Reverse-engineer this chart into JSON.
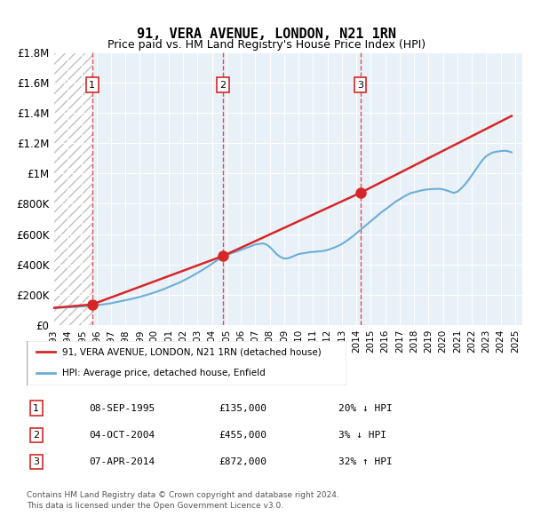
{
  "title": "91, VERA AVENUE, LONDON, N21 1RN",
  "subtitle": "Price paid vs. HM Land Registry's House Price Index (HPI)",
  "legend_line1": "91, VERA AVENUE, LONDON, N21 1RN (detached house)",
  "legend_line2": "HPI: Average price, detached house, Enfield",
  "footer1": "Contains HM Land Registry data © Crown copyright and database right 2024.",
  "footer2": "This data is licensed under the Open Government Licence v3.0.",
  "sales": [
    {
      "num": 1,
      "date": "08-SEP-1995",
      "price": 135000,
      "hpi_diff": "20% ↓ HPI"
    },
    {
      "num": 2,
      "date": "04-OCT-2004",
      "price": 455000,
      "hpi_diff": "3% ↓ HPI"
    },
    {
      "num": 3,
      "date": "07-APR-2014",
      "price": 872000,
      "hpi_diff": "32% ↑ HPI"
    }
  ],
  "sale_years": [
    1995.69,
    2004.75,
    2014.27
  ],
  "sale_prices": [
    135000,
    455000,
    872000
  ],
  "hpi_color": "#6baed6",
  "price_color": "#d62728",
  "background_hatch_color": "#d0d0d0",
  "ylim": [
    0,
    1800000
  ],
  "xlim_start": 1993,
  "xlim_end": 2025.5,
  "yticks": [
    0,
    200000,
    400000,
    600000,
    800000,
    1000000,
    1200000,
    1400000,
    1600000,
    1800000
  ],
  "ytick_labels": [
    "£0",
    "£200K",
    "£400K",
    "£600K",
    "£800K",
    "£1M",
    "£1.2M",
    "£1.4M",
    "£1.6M",
    "£1.8M"
  ],
  "xticks": [
    1993,
    1994,
    1995,
    1996,
    1997,
    1998,
    1999,
    2000,
    2001,
    2002,
    2003,
    2004,
    2005,
    2006,
    2007,
    2008,
    2009,
    2010,
    2011,
    2012,
    2013,
    2014,
    2015,
    2016,
    2017,
    2018,
    2019,
    2020,
    2021,
    2022,
    2023,
    2024,
    2025
  ],
  "hpi_x": [
    1993,
    1993.25,
    1993.5,
    1993.75,
    1994,
    1994.25,
    1994.5,
    1994.75,
    1995,
    1995.25,
    1995.5,
    1995.75,
    1996,
    1996.25,
    1996.5,
    1996.75,
    1997,
    1997.25,
    1997.5,
    1997.75,
    1998,
    1998.25,
    1998.5,
    1998.75,
    1999,
    1999.25,
    1999.5,
    1999.75,
    2000,
    2000.25,
    2000.5,
    2000.75,
    2001,
    2001.25,
    2001.5,
    2001.75,
    2002,
    2002.25,
    2002.5,
    2002.75,
    2003,
    2003.25,
    2003.5,
    2003.75,
    2004,
    2004.25,
    2004.5,
    2004.75,
    2005,
    2005.25,
    2005.5,
    2005.75,
    2006,
    2006.25,
    2006.5,
    2006.75,
    2007,
    2007.25,
    2007.5,
    2007.75,
    2008,
    2008.25,
    2008.5,
    2008.75,
    2009,
    2009.25,
    2009.5,
    2009.75,
    2010,
    2010.25,
    2010.5,
    2010.75,
    2011,
    2011.25,
    2011.5,
    2011.75,
    2012,
    2012.25,
    2012.5,
    2012.75,
    2013,
    2013.25,
    2013.5,
    2013.75,
    2014,
    2014.25,
    2014.5,
    2014.75,
    2015,
    2015.25,
    2015.5,
    2015.75,
    2016,
    2016.25,
    2016.5,
    2016.75,
    2017,
    2017.25,
    2017.5,
    2017.75,
    2018,
    2018.25,
    2018.5,
    2018.75,
    2019,
    2019.25,
    2019.5,
    2019.75,
    2020,
    2020.25,
    2020.5,
    2020.75,
    2021,
    2021.25,
    2021.5,
    2021.75,
    2022,
    2022.25,
    2022.5,
    2022.75,
    2023,
    2023.25,
    2023.5,
    2023.75,
    2024,
    2024.25,
    2024.5,
    2024.75
  ],
  "hpi_y": [
    112000,
    113000,
    114000,
    115000,
    116000,
    117000,
    118000,
    120000,
    122000,
    124000,
    126000,
    128000,
    130000,
    133000,
    136000,
    139000,
    143000,
    148000,
    153000,
    158000,
    163000,
    168000,
    173000,
    179000,
    185000,
    192000,
    199000,
    206000,
    214000,
    222000,
    231000,
    240000,
    250000,
    260000,
    270000,
    280000,
    292000,
    304000,
    317000,
    330000,
    344000,
    358000,
    373000,
    388000,
    404000,
    420000,
    437000,
    454000,
    462000,
    470000,
    478000,
    486000,
    495000,
    504000,
    513000,
    522000,
    531000,
    535000,
    538000,
    532000,
    515000,
    490000,
    465000,
    448000,
    438000,
    440000,
    448000,
    458000,
    468000,
    472000,
    476000,
    480000,
    482000,
    484000,
    486000,
    489000,
    495000,
    503000,
    512000,
    522000,
    535000,
    550000,
    567000,
    585000,
    605000,
    625000,
    645000,
    665000,
    685000,
    705000,
    725000,
    745000,
    762000,
    780000,
    798000,
    816000,
    830000,
    845000,
    858000,
    870000,
    876000,
    882000,
    888000,
    893000,
    895000,
    897000,
    898000,
    899000,
    895000,
    888000,
    880000,
    872000,
    880000,
    900000,
    925000,
    955000,
    988000,
    1022000,
    1058000,
    1090000,
    1115000,
    1130000,
    1140000,
    1145000,
    1148000,
    1150000,
    1148000,
    1140000
  ],
  "price_x": [
    1993.0,
    1995.69,
    2004.75,
    2014.27,
    2024.75
  ],
  "price_y": [
    112000,
    135000,
    455000,
    872000,
    1380000
  ]
}
